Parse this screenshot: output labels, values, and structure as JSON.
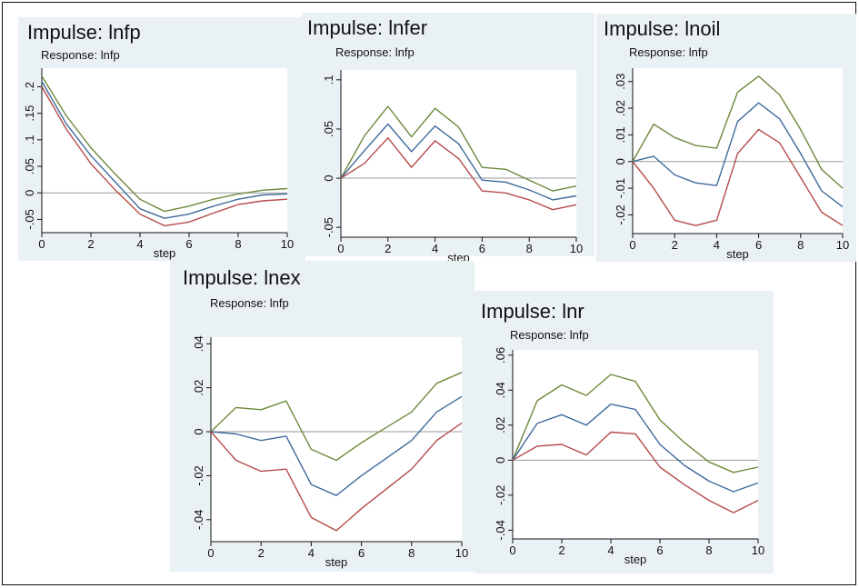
{
  "chart_data": [
    {
      "type": "line",
      "title": "Impulse: lnfp",
      "subtitle": "Response: lnfp",
      "xlabel": "step",
      "ylabel": "",
      "x": [
        0,
        1,
        2,
        3,
        4,
        5,
        6,
        7,
        8,
        9,
        10
      ],
      "xticks": [
        0,
        2,
        4,
        6,
        8,
        10
      ],
      "xtick_labels": [
        "0",
        "2",
        "4",
        "6",
        "8",
        "10"
      ],
      "yticks": [
        -0.05,
        0,
        0.05,
        0.1,
        0.15,
        0.2
      ],
      "ytick_labels": [
        "-.05",
        "0",
        ".05",
        ".1",
        ".15",
        ".2"
      ],
      "xlim": [
        0,
        10
      ],
      "ylim": [
        -0.075,
        0.235
      ],
      "zero_line": true,
      "series": [
        {
          "color": "#6d8a3c",
          "values": [
            0.22,
            0.145,
            0.085,
            0.035,
            -0.012,
            -0.035,
            -0.025,
            -0.012,
            -0.002,
            0.005,
            0.008
          ]
        },
        {
          "color": "#3f6a9c",
          "values": [
            0.21,
            0.13,
            0.07,
            0.02,
            -0.03,
            -0.048,
            -0.04,
            -0.025,
            -0.012,
            -0.004,
            -0.002
          ]
        },
        {
          "color": "#b54a4a",
          "values": [
            0.2,
            0.12,
            0.055,
            0.005,
            -0.04,
            -0.062,
            -0.055,
            -0.038,
            -0.022,
            -0.015,
            -0.012
          ]
        }
      ]
    },
    {
      "type": "line",
      "title": "Impulse: lnfer",
      "subtitle": "Response: lnfp",
      "xlabel": "step",
      "ylabel": "",
      "x": [
        0,
        1,
        2,
        3,
        4,
        5,
        6,
        7,
        8,
        9,
        10
      ],
      "xticks": [
        0,
        2,
        4,
        6,
        8,
        10
      ],
      "xtick_labels": [
        "0",
        "2",
        "4",
        "6",
        "8",
        "10"
      ],
      "yticks": [
        -0.05,
        0,
        0.05,
        0.1
      ],
      "ytick_labels": [
        "-.05",
        "0",
        ".05",
        ".1"
      ],
      "xlim": [
        0,
        10
      ],
      "ylim": [
        -0.06,
        0.11
      ],
      "zero_line": true,
      "series": [
        {
          "color": "#6d8a3c",
          "values": [
            0,
            0.043,
            0.073,
            0.042,
            0.071,
            0.052,
            0.011,
            0.009,
            -0.002,
            -0.013,
            -0.008
          ]
        },
        {
          "color": "#3f6a9c",
          "values": [
            0,
            0.028,
            0.055,
            0.027,
            0.053,
            0.035,
            -0.002,
            -0.004,
            -0.012,
            -0.022,
            -0.018
          ]
        },
        {
          "color": "#b54a4a",
          "values": [
            0,
            0.015,
            0.041,
            0.011,
            0.038,
            0.02,
            -0.013,
            -0.015,
            -0.022,
            -0.032,
            -0.027
          ]
        }
      ]
    },
    {
      "type": "line",
      "title": "Impulse: lnoil",
      "subtitle": "Response: lnfp",
      "xlabel": "step",
      "ylabel": "",
      "x": [
        0,
        1,
        2,
        3,
        4,
        5,
        6,
        7,
        8,
        9,
        10
      ],
      "xticks": [
        0,
        2,
        4,
        6,
        8,
        10
      ],
      "xtick_labels": [
        "0",
        "2",
        "4",
        "6",
        "8",
        "10"
      ],
      "yticks": [
        -0.02,
        -0.01,
        0,
        0.01,
        0.02,
        0.03
      ],
      "ytick_labels": [
        "-.02",
        "-.01",
        "0",
        ".01",
        ".02",
        ".03"
      ],
      "xlim": [
        0,
        10
      ],
      "ylim": [
        -0.027,
        0.035
      ],
      "zero_line": true,
      "series": [
        {
          "color": "#6d8a3c",
          "values": [
            0,
            0.014,
            0.009,
            0.006,
            0.005,
            0.026,
            0.032,
            0.025,
            0.012,
            -0.003,
            -0.01
          ]
        },
        {
          "color": "#3f6a9c",
          "values": [
            0,
            0.002,
            -0.005,
            -0.008,
            -0.009,
            0.015,
            0.022,
            0.016,
            0.003,
            -0.011,
            -0.017
          ]
        },
        {
          "color": "#b54a4a",
          "values": [
            0,
            -0.01,
            -0.022,
            -0.024,
            -0.022,
            0.003,
            0.012,
            0.007,
            -0.006,
            -0.019,
            -0.024
          ]
        }
      ]
    },
    {
      "type": "line",
      "title": "Impulse: lnex",
      "subtitle": "Response: lnfp",
      "xlabel": "step",
      "ylabel": "",
      "x": [
        0,
        1,
        2,
        3,
        4,
        5,
        6,
        7,
        8,
        9,
        10
      ],
      "xticks": [
        0,
        2,
        4,
        6,
        8,
        10
      ],
      "xtick_labels": [
        "0",
        "2",
        "4",
        "6",
        "8",
        "10"
      ],
      "yticks": [
        -0.04,
        -0.02,
        0,
        0.02,
        0.04
      ],
      "ytick_labels": [
        "-.04",
        "-.02",
        "0",
        ".02",
        ".04"
      ],
      "xlim": [
        0,
        10
      ],
      "ylim": [
        -0.05,
        0.043
      ],
      "zero_line": true,
      "series": [
        {
          "color": "#6d8a3c",
          "values": [
            0,
            0.011,
            0.01,
            0.014,
            -0.008,
            -0.013,
            -0.005,
            0.002,
            0.009,
            0.022,
            0.027
          ]
        },
        {
          "color": "#3f6a9c",
          "values": [
            0,
            -0.001,
            -0.004,
            -0.002,
            -0.024,
            -0.029,
            -0.02,
            -0.012,
            -0.004,
            0.009,
            0.016
          ]
        },
        {
          "color": "#b54a4a",
          "values": [
            0,
            -0.013,
            -0.018,
            -0.017,
            -0.039,
            -0.045,
            -0.035,
            -0.026,
            -0.017,
            -0.004,
            0.004
          ]
        }
      ]
    },
    {
      "type": "line",
      "title": "Impulse: lnr",
      "subtitle": "Response: lnfp",
      "xlabel": "step",
      "ylabel": "",
      "x": [
        0,
        1,
        2,
        3,
        4,
        5,
        6,
        7,
        8,
        9,
        10
      ],
      "xticks": [
        0,
        2,
        4,
        6,
        8,
        10
      ],
      "xtick_labels": [
        "0",
        "2",
        "4",
        "6",
        "8",
        "10"
      ],
      "yticks": [
        -0.04,
        -0.02,
        0,
        0.02,
        0.04,
        0.06
      ],
      "ytick_labels": [
        "-.04",
        "-.02",
        "0",
        ".02",
        ".04",
        ".06"
      ],
      "xlim": [
        0,
        10
      ],
      "ylim": [
        -0.045,
        0.063
      ],
      "zero_line": true,
      "series": [
        {
          "color": "#6d8a3c",
          "values": [
            0,
            0.034,
            0.043,
            0.037,
            0.049,
            0.045,
            0.023,
            0.01,
            -0.001,
            -0.007,
            -0.004
          ]
        },
        {
          "color": "#3f6a9c",
          "values": [
            0,
            0.021,
            0.026,
            0.02,
            0.032,
            0.029,
            0.009,
            -0.003,
            -0.012,
            -0.018,
            -0.013
          ]
        },
        {
          "color": "#b54a4a",
          "values": [
            0,
            0.008,
            0.009,
            0.003,
            0.016,
            0.015,
            -0.004,
            -0.014,
            -0.023,
            -0.03,
            -0.023
          ]
        }
      ]
    }
  ]
}
